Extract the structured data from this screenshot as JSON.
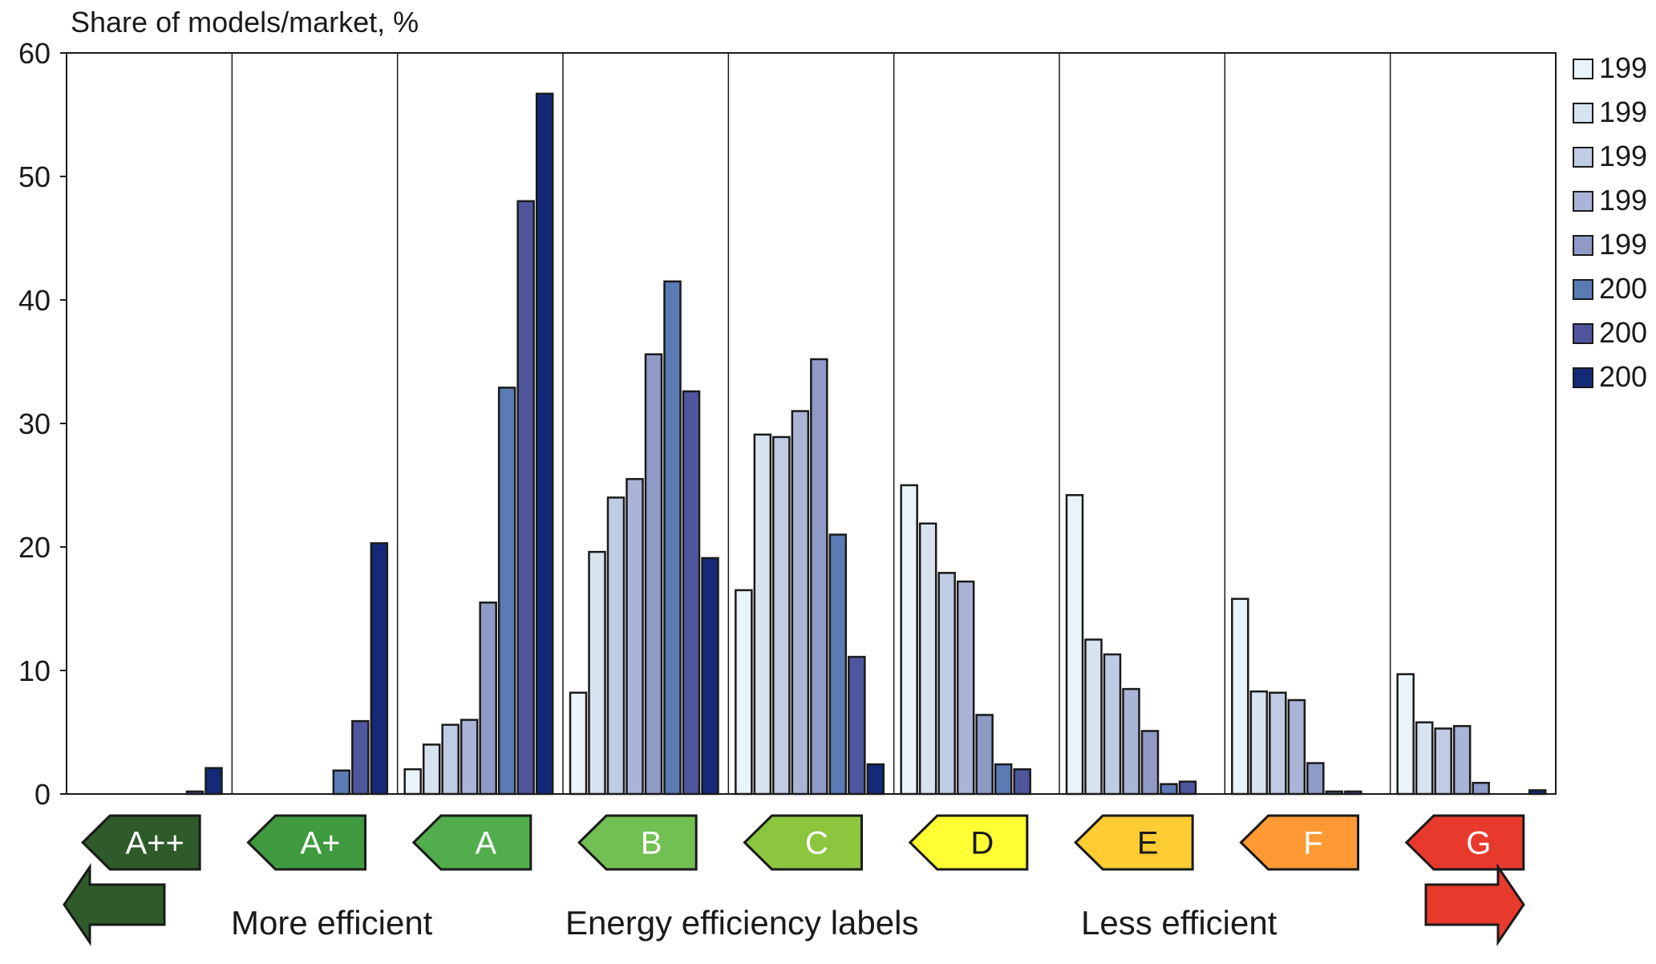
{
  "chart_data": {
    "type": "bar",
    "ylabel": "Share of models/market, %",
    "ylim": [
      0,
      60
    ],
    "yticks": [
      "0",
      "10",
      "20",
      "30",
      "40",
      "50",
      "60"
    ],
    "categories": [
      "A++",
      "A+",
      "A",
      "B",
      "C",
      "D",
      "E",
      "F",
      "G"
    ],
    "category_colors": [
      "#2f5a2a",
      "#3f9a40",
      "#52ad4c",
      "#72c052",
      "#8cc63f",
      "#ffff33",
      "#ffcc33",
      "#ff9933",
      "#e83a2c"
    ],
    "category_label_colors": [
      "#ffffff",
      "#ffffff",
      "#ffffff",
      "#ffffff",
      "#ffffff",
      "#1a1a1a",
      "#1a1a1a",
      "#ffffff",
      "#ffffff"
    ],
    "legend": [
      "199",
      "199",
      "199",
      "199",
      "199",
      "200",
      "200",
      "200"
    ],
    "series_colors": [
      "#eaf4f8",
      "#d7e3ef",
      "#c0cce3",
      "#aab4d6",
      "#8f9ac6",
      "#5a7bb4",
      "#4f569e",
      "#142a78"
    ],
    "series": [
      {
        "values": [
          0,
          0,
          2.0,
          8.2,
          16.5,
          25.0,
          24.2,
          15.8,
          9.7
        ]
      },
      {
        "values": [
          0,
          0,
          4.0,
          19.6,
          29.1,
          21.9,
          12.5,
          8.3,
          5.8
        ]
      },
      {
        "values": [
          0,
          0,
          5.6,
          24.0,
          28.9,
          17.9,
          11.3,
          8.2,
          5.3
        ]
      },
      {
        "values": [
          0,
          0,
          6.0,
          25.5,
          31.0,
          17.2,
          8.5,
          7.6,
          5.5
        ]
      },
      {
        "values": [
          0,
          0,
          15.5,
          35.6,
          35.2,
          6.4,
          5.1,
          2.5,
          0.9
        ]
      },
      {
        "values": [
          0,
          1.9,
          32.9,
          41.5,
          21.0,
          2.4,
          0.8,
          0.2,
          0
        ]
      },
      {
        "values": [
          0.2,
          5.9,
          48.0,
          32.6,
          11.1,
          2.0,
          1.0,
          0.2,
          0
        ]
      },
      {
        "values": [
          2.1,
          20.3,
          56.7,
          19.1,
          2.4,
          0,
          0,
          0,
          0.3
        ]
      }
    ],
    "bottom_labels": {
      "left": "More efficient",
      "center": "Energy efficiency labels",
      "right": "Less efficient"
    },
    "bottom_arrow_colors": {
      "left": "#2f5a2a",
      "right": "#e83a2c"
    }
  }
}
